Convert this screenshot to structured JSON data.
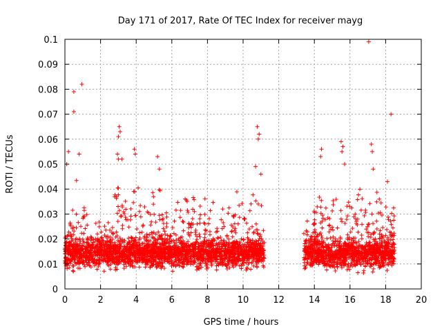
{
  "chart_data": {
    "type": "scatter",
    "title": "Day 171 of 2017, Rate Of TEC Index for receiver mayg",
    "xlabel": "GPS time / hours",
    "ylabel": "ROTI / TECUs",
    "xlim": [
      0,
      20
    ],
    "ylim": [
      0,
      0.1
    ],
    "xticks": [
      "0",
      "2",
      "4",
      "6",
      "8",
      "10",
      "12",
      "14",
      "16",
      "18",
      "20"
    ],
    "yticks": [
      "0",
      "0.01",
      "0.02",
      "0.03",
      "0.04",
      "0.05",
      "0.06",
      "0.07",
      "0.08",
      "0.09",
      "0.1"
    ],
    "grid": true,
    "marker": "+",
    "color": "#ff0000",
    "data_segments": [
      {
        "x_range": [
          0.0,
          11.2
        ],
        "baseline": 0.014,
        "spread": 0.008,
        "min": 0.004
      },
      {
        "x_range": [
          13.4,
          18.5
        ],
        "baseline": 0.014,
        "spread": 0.008,
        "min": 0.003
      }
    ],
    "spike_envelope": [
      [
        0.0,
        0.028
      ],
      [
        0.3,
        0.035
      ],
      [
        0.6,
        0.045
      ],
      [
        0.8,
        0.048
      ],
      [
        1.0,
        0.04
      ],
      [
        1.3,
        0.032
      ],
      [
        1.7,
        0.028
      ],
      [
        2.0,
        0.03
      ],
      [
        2.4,
        0.032
      ],
      [
        2.8,
        0.045
      ],
      [
        3.1,
        0.052
      ],
      [
        3.4,
        0.043
      ],
      [
        3.7,
        0.045
      ],
      [
        4.0,
        0.052
      ],
      [
        4.3,
        0.035
      ],
      [
        4.8,
        0.038
      ],
      [
        5.2,
        0.05
      ],
      [
        5.6,
        0.038
      ],
      [
        6.0,
        0.03
      ],
      [
        6.5,
        0.04
      ],
      [
        7.0,
        0.045
      ],
      [
        7.5,
        0.042
      ],
      [
        8.0,
        0.04
      ],
      [
        8.5,
        0.032
      ],
      [
        9.0,
        0.038
      ],
      [
        9.4,
        0.048
      ],
      [
        9.8,
        0.042
      ],
      [
        10.2,
        0.035
      ],
      [
        10.6,
        0.045
      ],
      [
        11.0,
        0.04
      ],
      [
        11.2,
        0.03
      ],
      [
        13.4,
        0.028
      ],
      [
        13.8,
        0.038
      ],
      [
        14.2,
        0.048
      ],
      [
        14.6,
        0.04
      ],
      [
        15.0,
        0.042
      ],
      [
        15.5,
        0.052
      ],
      [
        16.0,
        0.038
      ],
      [
        16.5,
        0.045
      ],
      [
        17.0,
        0.04
      ],
      [
        17.5,
        0.045
      ],
      [
        18.0,
        0.04
      ],
      [
        18.5,
        0.035
      ]
    ],
    "outliers": [
      [
        0.5,
        0.079
      ],
      [
        0.5,
        0.071
      ],
      [
        0.95,
        0.082
      ],
      [
        0.2,
        0.055
      ],
      [
        0.8,
        0.054
      ],
      [
        0.1,
        0.05
      ],
      [
        3.05,
        0.065
      ],
      [
        3.1,
        0.063
      ],
      [
        3.0,
        0.061
      ],
      [
        3.0,
        0.052
      ],
      [
        2.95,
        0.054
      ],
      [
        3.2,
        0.052
      ],
      [
        3.9,
        0.056
      ],
      [
        3.95,
        0.054
      ],
      [
        5.2,
        0.053
      ],
      [
        5.3,
        0.048
      ],
      [
        10.8,
        0.065
      ],
      [
        10.9,
        0.062
      ],
      [
        10.85,
        0.06
      ],
      [
        11.0,
        0.046
      ],
      [
        10.7,
        0.049
      ],
      [
        14.4,
        0.056
      ],
      [
        14.35,
        0.053
      ],
      [
        15.5,
        0.059
      ],
      [
        15.6,
        0.057
      ],
      [
        15.55,
        0.055
      ],
      [
        15.7,
        0.05
      ],
      [
        17.05,
        0.099
      ],
      [
        17.2,
        0.058
      ],
      [
        17.25,
        0.055
      ],
      [
        17.3,
        0.048
      ],
      [
        18.3,
        0.07
      ],
      [
        18.1,
        0.043
      ]
    ]
  }
}
